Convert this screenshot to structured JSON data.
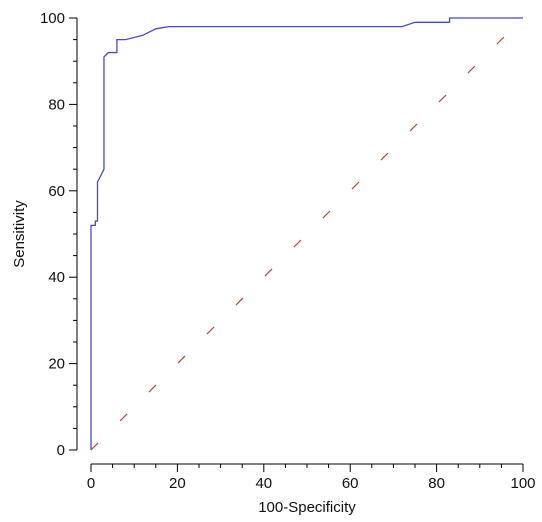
{
  "chart_data": {
    "type": "line",
    "title": "",
    "xlabel": "100-Specificity",
    "ylabel": "Sensitivity",
    "xlim": [
      0,
      100
    ],
    "ylim": [
      0,
      100
    ],
    "x_major_ticks": [
      0,
      20,
      40,
      60,
      80,
      100
    ],
    "y_major_ticks": [
      0,
      20,
      40,
      60,
      80,
      100
    ],
    "x_minor_step": 5,
    "y_minor_step": 5,
    "grid": false,
    "colors": {
      "roc": "#4a4ac4",
      "reference": "#b04a3c",
      "axis": "#000000"
    },
    "series": [
      {
        "style": "solid",
        "color": "#4a4ac4",
        "points": [
          [
            0,
            0
          ],
          [
            0,
            52
          ],
          [
            1,
            52
          ],
          [
            1,
            53
          ],
          [
            1.5,
            53
          ],
          [
            1.5,
            62
          ],
          [
            2,
            63
          ],
          [
            2.5,
            64
          ],
          [
            3,
            65
          ],
          [
            3,
            91
          ],
          [
            4,
            92
          ],
          [
            6,
            92
          ],
          [
            6,
            95
          ],
          [
            8,
            95
          ],
          [
            12,
            96
          ],
          [
            15,
            97.5
          ],
          [
            18,
            98
          ],
          [
            20,
            98
          ],
          [
            40,
            98
          ],
          [
            60,
            98
          ],
          [
            72,
            98
          ],
          [
            75,
            99
          ],
          [
            83,
            99
          ],
          [
            83,
            100
          ],
          [
            100,
            100
          ]
        ]
      },
      {
        "style": "dashed",
        "color": "#b04a3c",
        "points": [
          [
            0,
            0
          ],
          [
            100,
            100
          ]
        ]
      }
    ]
  }
}
